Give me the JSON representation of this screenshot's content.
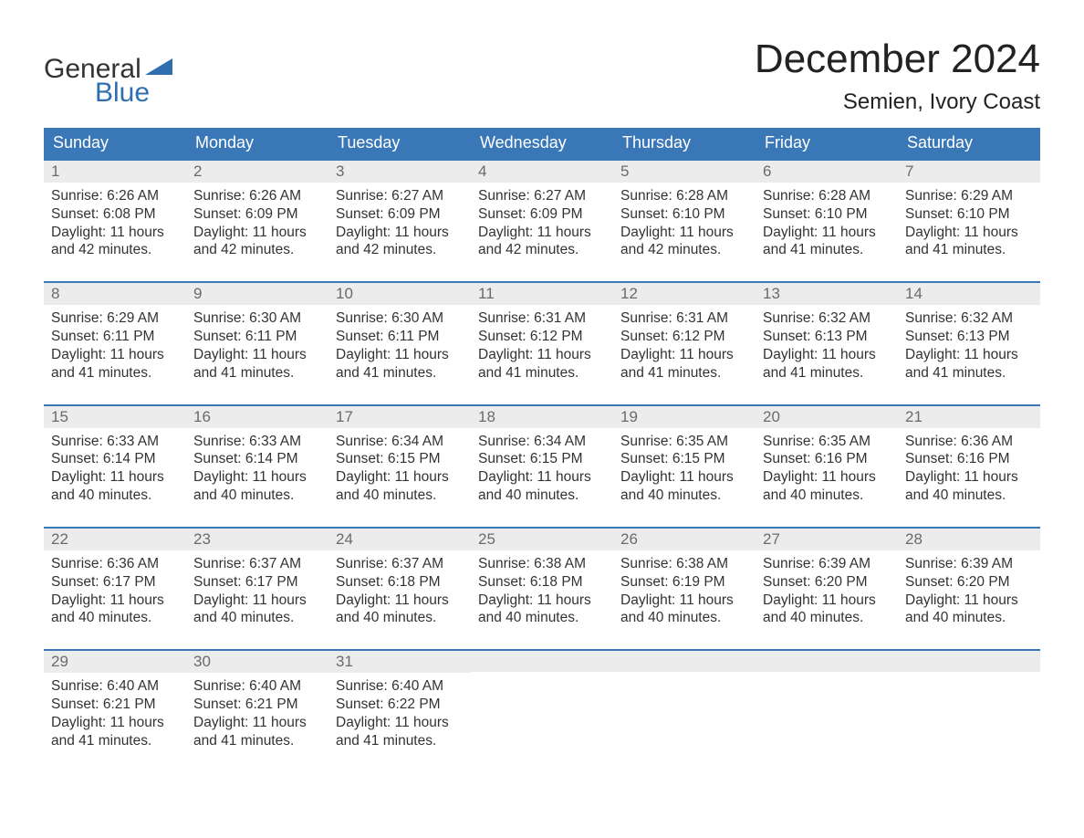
{
  "brand": {
    "word1": "General",
    "word2": "Blue",
    "text_color": "#333333",
    "accent_color": "#2f6fb0",
    "triangle_color": "#2f6fb0"
  },
  "header": {
    "title": "December 2024",
    "location": "Semien, Ivory Coast",
    "title_fontsize": 44,
    "location_fontsize": 24
  },
  "calendar": {
    "type": "table",
    "columns": [
      "Sunday",
      "Monday",
      "Tuesday",
      "Wednesday",
      "Thursday",
      "Friday",
      "Saturday"
    ],
    "header_bg": "#3a77b7",
    "header_text_color": "#ffffff",
    "row_separator_color": "#3a77b7",
    "daynum_bg": "#ececec",
    "daynum_color": "#6b6b6b",
    "body_text_color": "#333333",
    "body_fontsize": 15.5,
    "weeks": [
      [
        {
          "n": "1",
          "sunrise": "Sunrise: 6:26 AM",
          "sunset": "Sunset: 6:08 PM",
          "dl1": "Daylight: 11 hours",
          "dl2": "and 42 minutes."
        },
        {
          "n": "2",
          "sunrise": "Sunrise: 6:26 AM",
          "sunset": "Sunset: 6:09 PM",
          "dl1": "Daylight: 11 hours",
          "dl2": "and 42 minutes."
        },
        {
          "n": "3",
          "sunrise": "Sunrise: 6:27 AM",
          "sunset": "Sunset: 6:09 PM",
          "dl1": "Daylight: 11 hours",
          "dl2": "and 42 minutes."
        },
        {
          "n": "4",
          "sunrise": "Sunrise: 6:27 AM",
          "sunset": "Sunset: 6:09 PM",
          "dl1": "Daylight: 11 hours",
          "dl2": "and 42 minutes."
        },
        {
          "n": "5",
          "sunrise": "Sunrise: 6:28 AM",
          "sunset": "Sunset: 6:10 PM",
          "dl1": "Daylight: 11 hours",
          "dl2": "and 42 minutes."
        },
        {
          "n": "6",
          "sunrise": "Sunrise: 6:28 AM",
          "sunset": "Sunset: 6:10 PM",
          "dl1": "Daylight: 11 hours",
          "dl2": "and 41 minutes."
        },
        {
          "n": "7",
          "sunrise": "Sunrise: 6:29 AM",
          "sunset": "Sunset: 6:10 PM",
          "dl1": "Daylight: 11 hours",
          "dl2": "and 41 minutes."
        }
      ],
      [
        {
          "n": "8",
          "sunrise": "Sunrise: 6:29 AM",
          "sunset": "Sunset: 6:11 PM",
          "dl1": "Daylight: 11 hours",
          "dl2": "and 41 minutes."
        },
        {
          "n": "9",
          "sunrise": "Sunrise: 6:30 AM",
          "sunset": "Sunset: 6:11 PM",
          "dl1": "Daylight: 11 hours",
          "dl2": "and 41 minutes."
        },
        {
          "n": "10",
          "sunrise": "Sunrise: 6:30 AM",
          "sunset": "Sunset: 6:11 PM",
          "dl1": "Daylight: 11 hours",
          "dl2": "and 41 minutes."
        },
        {
          "n": "11",
          "sunrise": "Sunrise: 6:31 AM",
          "sunset": "Sunset: 6:12 PM",
          "dl1": "Daylight: 11 hours",
          "dl2": "and 41 minutes."
        },
        {
          "n": "12",
          "sunrise": "Sunrise: 6:31 AM",
          "sunset": "Sunset: 6:12 PM",
          "dl1": "Daylight: 11 hours",
          "dl2": "and 41 minutes."
        },
        {
          "n": "13",
          "sunrise": "Sunrise: 6:32 AM",
          "sunset": "Sunset: 6:13 PM",
          "dl1": "Daylight: 11 hours",
          "dl2": "and 41 minutes."
        },
        {
          "n": "14",
          "sunrise": "Sunrise: 6:32 AM",
          "sunset": "Sunset: 6:13 PM",
          "dl1": "Daylight: 11 hours",
          "dl2": "and 41 minutes."
        }
      ],
      [
        {
          "n": "15",
          "sunrise": "Sunrise: 6:33 AM",
          "sunset": "Sunset: 6:14 PM",
          "dl1": "Daylight: 11 hours",
          "dl2": "and 40 minutes."
        },
        {
          "n": "16",
          "sunrise": "Sunrise: 6:33 AM",
          "sunset": "Sunset: 6:14 PM",
          "dl1": "Daylight: 11 hours",
          "dl2": "and 40 minutes."
        },
        {
          "n": "17",
          "sunrise": "Sunrise: 6:34 AM",
          "sunset": "Sunset: 6:15 PM",
          "dl1": "Daylight: 11 hours",
          "dl2": "and 40 minutes."
        },
        {
          "n": "18",
          "sunrise": "Sunrise: 6:34 AM",
          "sunset": "Sunset: 6:15 PM",
          "dl1": "Daylight: 11 hours",
          "dl2": "and 40 minutes."
        },
        {
          "n": "19",
          "sunrise": "Sunrise: 6:35 AM",
          "sunset": "Sunset: 6:15 PM",
          "dl1": "Daylight: 11 hours",
          "dl2": "and 40 minutes."
        },
        {
          "n": "20",
          "sunrise": "Sunrise: 6:35 AM",
          "sunset": "Sunset: 6:16 PM",
          "dl1": "Daylight: 11 hours",
          "dl2": "and 40 minutes."
        },
        {
          "n": "21",
          "sunrise": "Sunrise: 6:36 AM",
          "sunset": "Sunset: 6:16 PM",
          "dl1": "Daylight: 11 hours",
          "dl2": "and 40 minutes."
        }
      ],
      [
        {
          "n": "22",
          "sunrise": "Sunrise: 6:36 AM",
          "sunset": "Sunset: 6:17 PM",
          "dl1": "Daylight: 11 hours",
          "dl2": "and 40 minutes."
        },
        {
          "n": "23",
          "sunrise": "Sunrise: 6:37 AM",
          "sunset": "Sunset: 6:17 PM",
          "dl1": "Daylight: 11 hours",
          "dl2": "and 40 minutes."
        },
        {
          "n": "24",
          "sunrise": "Sunrise: 6:37 AM",
          "sunset": "Sunset: 6:18 PM",
          "dl1": "Daylight: 11 hours",
          "dl2": "and 40 minutes."
        },
        {
          "n": "25",
          "sunrise": "Sunrise: 6:38 AM",
          "sunset": "Sunset: 6:18 PM",
          "dl1": "Daylight: 11 hours",
          "dl2": "and 40 minutes."
        },
        {
          "n": "26",
          "sunrise": "Sunrise: 6:38 AM",
          "sunset": "Sunset: 6:19 PM",
          "dl1": "Daylight: 11 hours",
          "dl2": "and 40 minutes."
        },
        {
          "n": "27",
          "sunrise": "Sunrise: 6:39 AM",
          "sunset": "Sunset: 6:20 PM",
          "dl1": "Daylight: 11 hours",
          "dl2": "and 40 minutes."
        },
        {
          "n": "28",
          "sunrise": "Sunrise: 6:39 AM",
          "sunset": "Sunset: 6:20 PM",
          "dl1": "Daylight: 11 hours",
          "dl2": "and 40 minutes."
        }
      ],
      [
        {
          "n": "29",
          "sunrise": "Sunrise: 6:40 AM",
          "sunset": "Sunset: 6:21 PM",
          "dl1": "Daylight: 11 hours",
          "dl2": "and 41 minutes."
        },
        {
          "n": "30",
          "sunrise": "Sunrise: 6:40 AM",
          "sunset": "Sunset: 6:21 PM",
          "dl1": "Daylight: 11 hours",
          "dl2": "and 41 minutes."
        },
        {
          "n": "31",
          "sunrise": "Sunrise: 6:40 AM",
          "sunset": "Sunset: 6:22 PM",
          "dl1": "Daylight: 11 hours",
          "dl2": "and 41 minutes."
        },
        {
          "empty": true
        },
        {
          "empty": true
        },
        {
          "empty": true
        },
        {
          "empty": true
        }
      ]
    ]
  }
}
